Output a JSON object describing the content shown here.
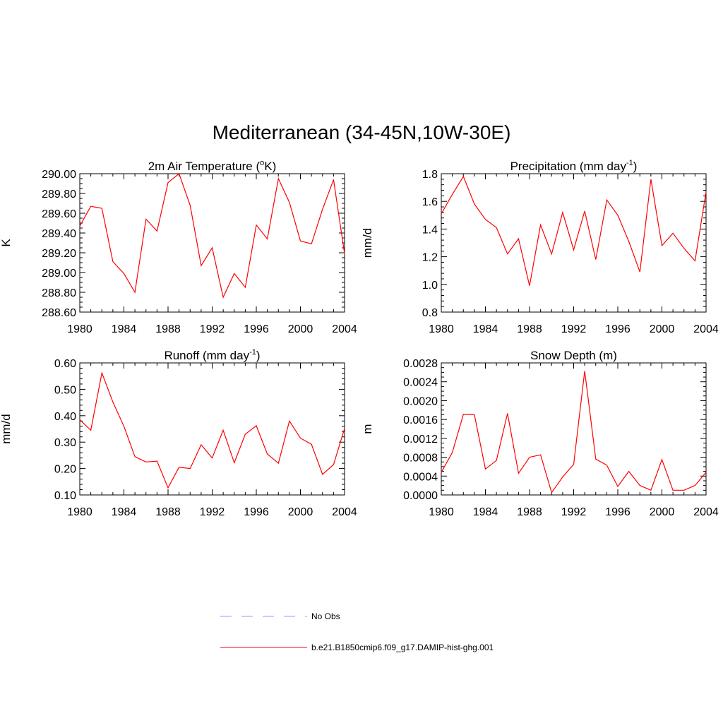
{
  "title": "Mediterranean (34-45N,10W-30E)",
  "colors": {
    "model": "#ff0000",
    "obs": "#9999ff",
    "axis": "#000000"
  },
  "legend": [
    {
      "label": "No Obs",
      "style": "dashed",
      "color": "#9999ff"
    },
    {
      "label": "b.e21.B1850cmip6.f09_g17.DAMIP-hist-ghg.001",
      "style": "solid",
      "color": "#ff0000"
    }
  ],
  "chart_data": [
    {
      "type": "line",
      "title": "2m Air Temperature (",
      "title_sup": "o",
      "title_post": "K)",
      "ylabel": "K",
      "xlim": [
        1980,
        2004
      ],
      "ylim": [
        288.6,
        290.0
      ],
      "xticks": [
        1980,
        1984,
        1988,
        1992,
        1996,
        2000,
        2004
      ],
      "yticks": [
        "288.60",
        "288.80",
        "289.00",
        "289.20",
        "289.40",
        "289.60",
        "289.80",
        "290.00"
      ],
      "x": [
        1980,
        1981,
        1982,
        1983,
        1984,
        1985,
        1986,
        1987,
        1988,
        1989,
        1990,
        1991,
        1992,
        1993,
        1994,
        1995,
        1996,
        1997,
        1998,
        1999,
        2000,
        2001,
        2002,
        2003,
        2004
      ],
      "series": [
        {
          "values": [
            289.47,
            289.67,
            289.65,
            289.11,
            288.99,
            288.8,
            289.54,
            289.42,
            289.91,
            290.0,
            289.68,
            289.07,
            289.25,
            288.75,
            288.99,
            288.85,
            289.48,
            289.34,
            289.95,
            289.71,
            289.32,
            289.29,
            289.64,
            289.94,
            289.19
          ]
        }
      ]
    },
    {
      "type": "line",
      "title": "Precipitation (mm day",
      "title_sup": "-1",
      "title_post": ")",
      "ylabel": "mm/d",
      "xlim": [
        1980,
        2004
      ],
      "ylim": [
        0.8,
        1.8
      ],
      "xticks": [
        1980,
        1984,
        1988,
        1992,
        1996,
        2000,
        2004
      ],
      "yticks": [
        "0.8",
        "1.0",
        "1.2",
        "1.4",
        "1.6",
        "1.8"
      ],
      "x": [
        1980,
        1981,
        1982,
        1983,
        1984,
        1985,
        1986,
        1987,
        1988,
        1989,
        1990,
        1991,
        1992,
        1993,
        1994,
        1995,
        1996,
        1997,
        1998,
        1999,
        2000,
        2001,
        2002,
        2003,
        2004
      ],
      "series": [
        {
          "values": [
            1.51,
            1.65,
            1.78,
            1.58,
            1.47,
            1.41,
            1.22,
            1.33,
            0.99,
            1.43,
            1.22,
            1.52,
            1.25,
            1.53,
            1.18,
            1.61,
            1.5,
            1.31,
            1.09,
            1.76,
            1.28,
            1.37,
            1.26,
            1.17,
            1.67
          ]
        }
      ]
    },
    {
      "type": "line",
      "title": "Runoff (mm day",
      "title_sup": "-1",
      "title_post": ")",
      "ylabel": "mm/d",
      "xlim": [
        1980,
        2004
      ],
      "ylim": [
        0.1,
        0.6
      ],
      "xticks": [
        1980,
        1984,
        1988,
        1992,
        1996,
        2000,
        2004
      ],
      "yticks": [
        "0.10",
        "0.20",
        "0.30",
        "0.40",
        "0.50",
        "0.60"
      ],
      "x": [
        1980,
        1981,
        1982,
        1983,
        1984,
        1985,
        1986,
        1987,
        1988,
        1989,
        1990,
        1991,
        1992,
        1993,
        1994,
        1995,
        1996,
        1997,
        1998,
        1999,
        2000,
        2001,
        2002,
        2003,
        2004
      ],
      "series": [
        {
          "values": [
            0.385,
            0.345,
            0.562,
            0.452,
            0.36,
            0.245,
            0.225,
            0.228,
            0.127,
            0.205,
            0.2,
            0.29,
            0.24,
            0.345,
            0.222,
            0.33,
            0.362,
            0.255,
            0.22,
            0.38,
            0.315,
            0.292,
            0.178,
            0.215,
            0.352
          ]
        }
      ]
    },
    {
      "type": "line",
      "title": "Snow Depth (m)",
      "title_sup": "",
      "title_post": "",
      "ylabel": "m",
      "xlim": [
        1980,
        2004
      ],
      "ylim": [
        0.0,
        0.0028
      ],
      "xticks": [
        1980,
        1984,
        1988,
        1992,
        1996,
        2000,
        2004
      ],
      "yticks": [
        "0.0000",
        "0.0004",
        "0.0008",
        "0.0012",
        "0.0016",
        "0.0020",
        "0.0024",
        "0.0028"
      ],
      "x": [
        1980,
        1981,
        1982,
        1983,
        1984,
        1985,
        1986,
        1987,
        1988,
        1989,
        1990,
        1991,
        1992,
        1993,
        1994,
        1995,
        1996,
        1997,
        1998,
        1999,
        2000,
        2001,
        2002,
        2003,
        2004
      ],
      "series": [
        {
          "values": [
            0.00048,
            0.0009,
            0.00171,
            0.0017,
            0.00055,
            0.00073,
            0.00173,
            0.00046,
            0.0008,
            0.00085,
            5e-05,
            0.00038,
            0.00065,
            0.00263,
            0.00076,
            0.00063,
            0.00018,
            0.0005,
            0.0002,
            0.0001,
            0.00075,
            0.0001,
            0.0001,
            0.0002,
            0.00048
          ]
        }
      ]
    }
  ]
}
